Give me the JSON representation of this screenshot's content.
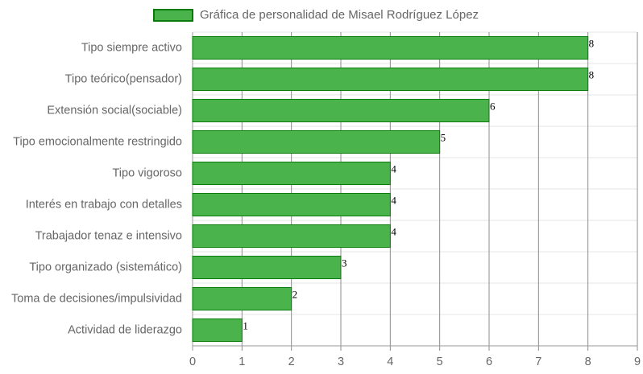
{
  "chart_data": {
    "type": "bar",
    "orientation": "horizontal",
    "categories": [
      "Tipo siempre activo",
      "Tipo teórico(pensador)",
      "Extensión social(sociable)",
      "Tipo emocionalmente restringido",
      "Tipo vigoroso",
      "Interés en trabajo con detalles",
      "Trabajador tenaz e intensivo",
      "Tipo organizado (sistemático)",
      "Toma de decisiones/impulsividad",
      "Actividad de liderazgo"
    ],
    "series": [
      {
        "name": "Gráfica de personalidad de Misael Rodríguez López",
        "values": [
          8,
          8,
          6,
          5,
          4,
          4,
          4,
          3,
          2,
          1
        ],
        "color": "#4bb34b",
        "border_color": "#0a7a0a"
      }
    ],
    "xlim": [
      0,
      9
    ],
    "x_ticks": [
      "0",
      "1",
      "2",
      "3",
      "4",
      "5",
      "6",
      "7",
      "8",
      "9"
    ],
    "grid": true,
    "legend_position": "top",
    "data_labels": true
  }
}
